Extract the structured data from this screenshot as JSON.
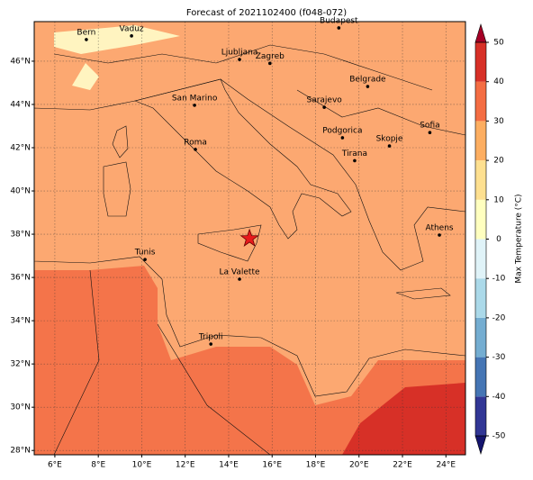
{
  "title": "Forecast of 2021102400 (f048-072)",
  "map": {
    "lonlim": [
      5.05,
      24.9
    ],
    "latlim": [
      27.8,
      47.83
    ],
    "lonticks": [
      {
        "value": 6,
        "label": "6°E"
      },
      {
        "value": 8,
        "label": "8°E"
      },
      {
        "value": 10,
        "label": "10°E"
      },
      {
        "value": 12,
        "label": "12°E"
      },
      {
        "value": 14,
        "label": "14°E"
      },
      {
        "value": 16,
        "label": "16°E"
      },
      {
        "value": 18,
        "label": "18°E"
      },
      {
        "value": 20,
        "label": "20°E"
      },
      {
        "value": 22,
        "label": "22°E"
      },
      {
        "value": 24,
        "label": "24°E"
      }
    ],
    "latticks": [
      {
        "value": 28,
        "label": "28°N"
      },
      {
        "value": 30,
        "label": "30°N"
      },
      {
        "value": 32,
        "label": "32°N"
      },
      {
        "value": 34,
        "label": "34°N"
      },
      {
        "value": 36,
        "label": "36°N"
      },
      {
        "value": 38,
        "label": "38°N"
      },
      {
        "value": 40,
        "label": "40°N"
      },
      {
        "value": 42,
        "label": "42°N"
      },
      {
        "value": 44,
        "label": "44°N"
      },
      {
        "value": 46,
        "label": "46°N"
      }
    ],
    "cities": [
      {
        "name": "Bern",
        "lon": 7.45,
        "lat": 47.0
      },
      {
        "name": "Vaduz",
        "lon": 9.53,
        "lat": 47.17
      },
      {
        "name": "Budapest",
        "lon": 19.07,
        "lat": 47.54
      },
      {
        "name": "Ljubljana",
        "lon": 14.5,
        "lat": 46.08
      },
      {
        "name": "Zagreb",
        "lon": 15.9,
        "lat": 45.9
      },
      {
        "name": "Belgrade",
        "lon": 20.4,
        "lat": 44.83
      },
      {
        "name": "San Marino",
        "lon": 12.43,
        "lat": 43.96
      },
      {
        "name": "Sarajevo",
        "lon": 18.4,
        "lat": 43.87
      },
      {
        "name": "Sofia",
        "lon": 23.26,
        "lat": 42.7
      },
      {
        "name": "Podgorica",
        "lon": 19.24,
        "lat": 42.46
      },
      {
        "name": "Skopje",
        "lon": 21.4,
        "lat": 42.08
      },
      {
        "name": "Roma",
        "lon": 12.47,
        "lat": 41.92
      },
      {
        "name": "Tirana",
        "lon": 19.8,
        "lat": 41.4
      },
      {
        "name": "Athens",
        "lon": 23.7,
        "lat": 37.96
      },
      {
        "name": "Tunis",
        "lon": 10.15,
        "lat": 36.83
      },
      {
        "name": "La Valette",
        "lon": 14.5,
        "lat": 35.92
      },
      {
        "name": "Tripoli",
        "lon": 13.18,
        "lat": 32.92
      }
    ],
    "star": {
      "lon": 14.96,
      "lat": 37.8
    }
  },
  "colorbar": {
    "label": "Max Temperature (°C)",
    "lim": [
      -50,
      50
    ],
    "ticks": [
      -50,
      -40,
      -30,
      -20,
      -10,
      0,
      10,
      20,
      30,
      40,
      50
    ],
    "colors": [
      "#313695",
      "#4575b4",
      "#74add1",
      "#abd9e9",
      "#e0f3f8",
      "#ffffbf",
      "#fee090",
      "#fdae61",
      "#f46d43",
      "#d73027"
    ],
    "under": "#14146e",
    "over": "#a50026"
  }
}
